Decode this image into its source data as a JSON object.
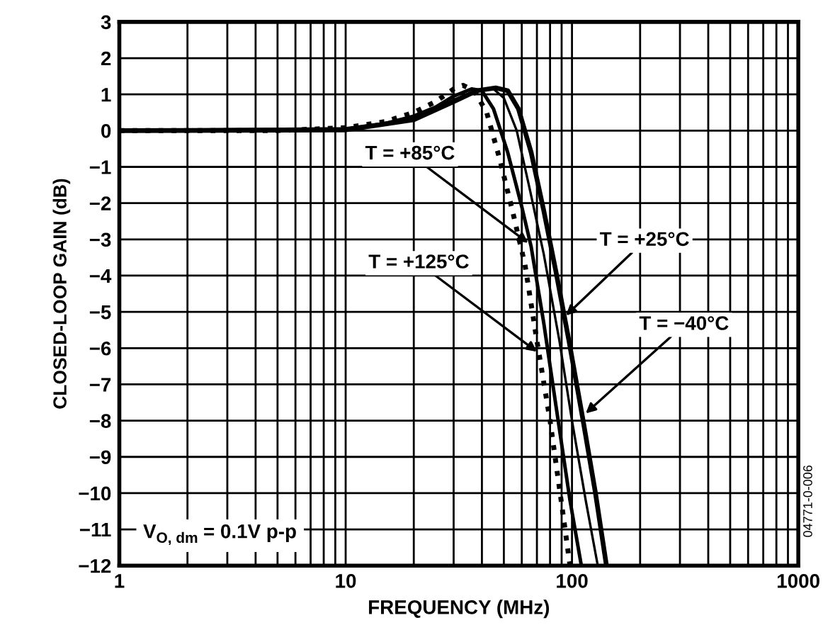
{
  "chart_data": {
    "type": "line",
    "xlabel": "FREQUENCY (MHz)",
    "ylabel": "CLOSED-LOOP GAIN (dB)",
    "log": "x",
    "grid": true,
    "xlim": [
      1,
      1000
    ],
    "xticks": [
      1,
      10,
      100,
      1000
    ],
    "ylim": [
      -12,
      3
    ],
    "yticks": [
      {
        "value": -12,
        "label": "−12"
      },
      {
        "value": -11,
        "label": "−11"
      },
      {
        "value": -10,
        "label": "−10"
      },
      {
        "value": -9,
        "label": "−9"
      },
      {
        "value": -8,
        "label": "−8"
      },
      {
        "value": -7,
        "label": "−7"
      },
      {
        "value": -6,
        "label": "−6"
      },
      {
        "value": -5,
        "label": "−5"
      },
      {
        "value": -4,
        "label": "−4"
      },
      {
        "value": -3,
        "label": "−3"
      },
      {
        "value": -2,
        "label": "−2"
      },
      {
        "value": -1,
        "label": "−1"
      },
      0,
      1,
      2,
      3
    ],
    "series": [
      {
        "color": "#000000",
        "line_style": "dotted",
        "x": [
          1,
          5,
          10,
          15,
          20,
          25,
          30,
          33,
          37,
          42,
          48,
          55,
          62,
          70,
          80,
          90,
          98
        ],
        "values": [
          0,
          0,
          0.08,
          0.25,
          0.5,
          0.8,
          1.15,
          1.25,
          1.1,
          0.5,
          -0.8,
          -2.3,
          -3.7,
          -5.8,
          -8.0,
          -10.3,
          -12
        ]
      },
      {
        "color": "#000000",
        "line_style": "solid",
        "x": [
          1,
          10,
          15,
          20,
          25,
          30,
          36,
          40,
          45,
          52,
          60,
          66,
          75,
          85,
          98,
          110
        ],
        "values": [
          0,
          0.05,
          0.2,
          0.4,
          0.65,
          0.95,
          1.15,
          1.1,
          0.6,
          -0.6,
          -2.1,
          -3.2,
          -5.3,
          -7.6,
          -10.2,
          -12
        ]
      },
      {
        "color": "#000000",
        "line_style": "solid",
        "x": [
          1,
          10,
          20,
          30,
          38,
          45,
          50,
          57,
          65,
          75,
          88,
          100,
          115,
          130
        ],
        "values": [
          0,
          0.03,
          0.35,
          0.85,
          1.12,
          1.15,
          0.9,
          0,
          -1.6,
          -3.4,
          -5.8,
          -8,
          -10.2,
          -12
        ]
      },
      {
        "color": "#000000",
        "line_style": "solid",
        "x": [
          1,
          10,
          20,
          30,
          38,
          46,
          52,
          58,
          66,
          75,
          85,
          97,
          112,
          127,
          142
        ],
        "values": [
          0,
          0.02,
          0.3,
          0.8,
          1.1,
          1.18,
          1.1,
          0.6,
          -0.6,
          -2.2,
          -3.9,
          -5.8,
          -8,
          -10,
          -12
        ]
      }
    ],
    "annotations": [
      {
        "text": "T = +85°C",
        "x": 64,
        "y": -3.1
      },
      {
        "text": "T = +125°C",
        "x": 70,
        "y": -6.1
      },
      {
        "text": "T = +25°C",
        "x": 94,
        "y": -5.1
      },
      {
        "text": "T = −40°C",
        "x": 115,
        "y": -7.8
      },
      "V$_{O, dm}$ = 0.1V p-p",
      "04771-0-006"
    ]
  }
}
